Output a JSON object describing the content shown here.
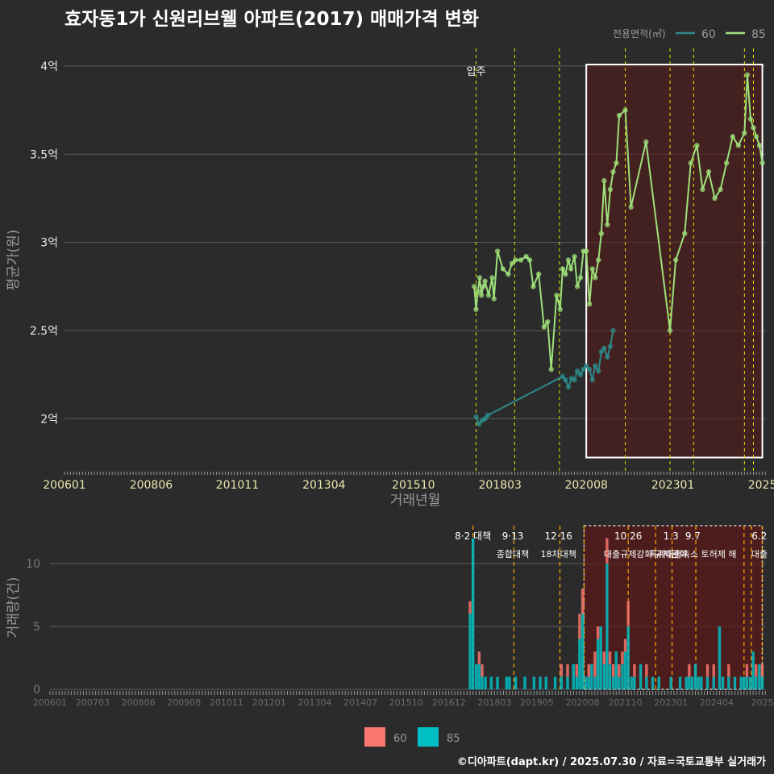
{
  "title": "효자동1가 신원리브웰 아파트(2017) 매매가격 변화",
  "credit": "©디아파트(dapt.kr) / 2025.07.30 / 자료=국토교통부 실거래가",
  "colors": {
    "s60_price": "#2e8a8a",
    "s85_price": "#9ee07a",
    "bar60": "#f8766d",
    "bar85": "#00bfc4",
    "vline": "#e6e600",
    "vline2": "#ffa500",
    "highlight": "#5a1a1a"
  },
  "chart_data": [
    {
      "type": "line",
      "name": "price",
      "xlabel": "거래년월",
      "ylabel": "평균가(원)",
      "ylim": [
        1.7,
        4.1
      ],
      "yticks": [
        {
          "v": 2.0,
          "label": "2억"
        },
        {
          "v": 2.5,
          "label": "2.5억"
        },
        {
          "v": 3.0,
          "label": "3억"
        },
        {
          "v": 3.5,
          "label": "3.5억"
        },
        {
          "v": 4.0,
          "label": "4억"
        }
      ],
      "xlim": [
        2006.0,
        2025.6
      ],
      "xticks": [
        {
          "v": 2006.0,
          "label": "200601"
        },
        {
          "v": 2008.42,
          "label": "200806"
        },
        {
          "v": 2010.83,
          "label": "201011"
        },
        {
          "v": 2013.25,
          "label": "201304"
        },
        {
          "v": 2015.75,
          "label": "201510"
        },
        {
          "v": 2018.17,
          "label": "201803"
        },
        {
          "v": 2020.58,
          "label": "202008"
        },
        {
          "v": 2023.0,
          "label": "202301"
        },
        {
          "v": 2025.5,
          "label": "2025"
        }
      ],
      "legend_title": "전용면적(㎡)",
      "legend": [
        "60",
        "85"
      ],
      "event_lines": [
        {
          "x": 2017.5,
          "label": "입주"
        },
        {
          "x": 2018.58
        },
        {
          "x": 2019.83
        },
        {
          "x": 2021.67
        },
        {
          "x": 2022.92
        },
        {
          "x": 2023.58
        },
        {
          "x": 2025.0
        },
        {
          "x": 2025.25
        }
      ],
      "highlight_range": [
        2020.58,
        2025.5
      ],
      "series": [
        {
          "name": "60",
          "x": [
            2017.5,
            2017.58,
            2017.67,
            2017.75,
            2017.83,
            2019.92,
            2020.0,
            2020.08,
            2020.17,
            2020.25,
            2020.33,
            2020.42,
            2020.5,
            2020.58,
            2020.67,
            2020.75,
            2020.83,
            2020.92,
            2021.0,
            2021.08,
            2021.17,
            2021.25,
            2021.33
          ],
          "y": [
            2.01,
            1.97,
            1.99,
            2.0,
            2.02,
            2.24,
            2.22,
            2.18,
            2.23,
            2.22,
            2.27,
            2.25,
            2.28,
            2.3,
            2.28,
            2.22,
            2.3,
            2.27,
            2.38,
            2.4,
            2.35,
            2.41,
            2.5
          ]
        },
        {
          "name": "85",
          "x": [
            2017.45,
            2017.5,
            2017.55,
            2017.6,
            2017.65,
            2017.7,
            2017.75,
            2017.85,
            2017.95,
            2018.0,
            2018.1,
            2018.25,
            2018.4,
            2018.5,
            2018.6,
            2018.75,
            2018.9,
            2019.0,
            2019.1,
            2019.25,
            2019.4,
            2019.5,
            2019.6,
            2019.75,
            2019.85,
            2019.92,
            2020.0,
            2020.08,
            2020.15,
            2020.25,
            2020.33,
            2020.42,
            2020.5,
            2020.58,
            2020.67,
            2020.75,
            2020.83,
            2020.92,
            2021.0,
            2021.08,
            2021.17,
            2021.25,
            2021.33,
            2021.42,
            2021.5,
            2021.67,
            2021.83,
            2022.25,
            2022.92,
            2023.08,
            2023.33,
            2023.5,
            2023.67,
            2023.83,
            2024.0,
            2024.17,
            2024.33,
            2024.5,
            2024.67,
            2024.83,
            2025.0,
            2025.08,
            2025.17,
            2025.25,
            2025.33,
            2025.42,
            2025.5
          ],
          "y": [
            2.75,
            2.62,
            2.72,
            2.8,
            2.7,
            2.75,
            2.78,
            2.7,
            2.8,
            2.68,
            2.95,
            2.85,
            2.82,
            2.88,
            2.9,
            2.9,
            2.92,
            2.9,
            2.75,
            2.82,
            2.52,
            2.55,
            2.28,
            2.7,
            2.62,
            2.85,
            2.82,
            2.9,
            2.85,
            2.92,
            2.75,
            2.8,
            2.95,
            2.95,
            2.65,
            2.85,
            2.8,
            2.9,
            3.05,
            3.35,
            3.1,
            3.3,
            3.4,
            3.45,
            3.72,
            3.75,
            3.2,
            3.57,
            2.5,
            2.9,
            3.05,
            3.45,
            3.55,
            3.3,
            3.4,
            3.25,
            3.3,
            3.45,
            3.6,
            3.55,
            3.62,
            3.95,
            3.7,
            3.65,
            3.6,
            3.55,
            3.45
          ]
        }
      ]
    },
    {
      "type": "bar",
      "name": "volume",
      "xlabel": "",
      "ylabel": "거래량(건)",
      "ylim": [
        0,
        13
      ],
      "yticks": [
        {
          "v": 0,
          "label": "0"
        },
        {
          "v": 5,
          "label": "5"
        },
        {
          "v": 10,
          "label": "10"
        }
      ],
      "xlim": [
        2006.0,
        2025.6
      ],
      "xticks": [
        {
          "v": 2006.0,
          "label": "200601"
        },
        {
          "v": 2007.17,
          "label": "200703"
        },
        {
          "v": 2008.42,
          "label": "200806"
        },
        {
          "v": 2009.67,
          "label": "200908"
        },
        {
          "v": 2010.83,
          "label": "201011"
        },
        {
          "v": 2012.0,
          "label": "201201"
        },
        {
          "v": 2013.25,
          "label": "201304"
        },
        {
          "v": 2014.5,
          "label": "201407"
        },
        {
          "v": 2015.75,
          "label": "201510"
        },
        {
          "v": 2016.92,
          "label": "201612"
        },
        {
          "v": 2018.17,
          "label": "201803"
        },
        {
          "v": 2019.33,
          "label": "201905"
        },
        {
          "v": 2020.58,
          "label": "202008"
        },
        {
          "v": 2021.75,
          "label": "202110"
        },
        {
          "v": 2023.0,
          "label": "202301"
        },
        {
          "v": 2024.25,
          "label": "202404"
        },
        {
          "v": 2025.5,
          "label": "2025"
        }
      ],
      "legend": [
        "60",
        "85"
      ],
      "annotations": [
        {
          "x": 2017.58,
          "line1": "8·2 대책",
          "line2": ""
        },
        {
          "x": 2018.67,
          "line1": "9·13",
          "line2": "종합대책"
        },
        {
          "x": 2019.92,
          "line1": "12·16",
          "line2": "18차대책"
        },
        {
          "x": 2021.83,
          "line1": "10.26",
          "line2": "대출규제강화"
        },
        {
          "x": 2023.0,
          "line1": "1.3",
          "line2": "규제완화"
        },
        {
          "x": 2023.6,
          "line1": "9.7",
          "line2": "특례대출축소 토허제 해"
        },
        {
          "x": 2025.42,
          "line1": "6.2",
          "line2": "대출"
        }
      ],
      "event_lines": [
        2017.58,
        2018.7,
        2019.96,
        2020.62,
        2021.83,
        2022.58,
        2023.03,
        2023.68,
        2025.0,
        2025.2,
        2025.5
      ],
      "highlight_range": [
        2020.62,
        2025.5
      ],
      "bars": [
        {
          "x": 2017.5,
          "s60": 1,
          "s85": 6
        },
        {
          "x": 2017.58,
          "s60": 0,
          "s85": 12
        },
        {
          "x": 2017.67,
          "s60": 0,
          "s85": 2
        },
        {
          "x": 2017.75,
          "s60": 1,
          "s85": 2
        },
        {
          "x": 2017.83,
          "s60": 1,
          "s85": 1
        },
        {
          "x": 2017.92,
          "s60": 0,
          "s85": 1
        },
        {
          "x": 2018.08,
          "s60": 0,
          "s85": 1
        },
        {
          "x": 2018.25,
          "s60": 0,
          "s85": 1
        },
        {
          "x": 2018.5,
          "s60": 0,
          "s85": 1
        },
        {
          "x": 2018.58,
          "s60": 0,
          "s85": 1
        },
        {
          "x": 2018.75,
          "s60": 0,
          "s85": 1
        },
        {
          "x": 2019.0,
          "s60": 0,
          "s85": 1
        },
        {
          "x": 2019.25,
          "s60": 0,
          "s85": 1
        },
        {
          "x": 2019.42,
          "s60": 0,
          "s85": 1
        },
        {
          "x": 2019.58,
          "s60": 0,
          "s85": 1
        },
        {
          "x": 2019.83,
          "s60": 0,
          "s85": 1
        },
        {
          "x": 2020.0,
          "s60": 1,
          "s85": 1
        },
        {
          "x": 2020.17,
          "s60": 1,
          "s85": 1
        },
        {
          "x": 2020.33,
          "s60": 0,
          "s85": 2
        },
        {
          "x": 2020.42,
          "s60": 1,
          "s85": 1
        },
        {
          "x": 2020.5,
          "s60": 2,
          "s85": 4
        },
        {
          "x": 2020.58,
          "s60": 2,
          "s85": 6
        },
        {
          "x": 2020.67,
          "s60": 0,
          "s85": 1
        },
        {
          "x": 2020.75,
          "s60": 1,
          "s85": 1
        },
        {
          "x": 2020.83,
          "s60": 0,
          "s85": 2
        },
        {
          "x": 2020.92,
          "s60": 2,
          "s85": 1
        },
        {
          "x": 2021.0,
          "s60": 1,
          "s85": 4
        },
        {
          "x": 2021.08,
          "s60": 0,
          "s85": 5
        },
        {
          "x": 2021.17,
          "s60": 1,
          "s85": 2
        },
        {
          "x": 2021.25,
          "s60": 2,
          "s85": 10
        },
        {
          "x": 2021.33,
          "s60": 1,
          "s85": 2
        },
        {
          "x": 2021.42,
          "s60": 1,
          "s85": 1
        },
        {
          "x": 2021.5,
          "s60": 0,
          "s85": 3
        },
        {
          "x": 2021.58,
          "s60": 1,
          "s85": 1
        },
        {
          "x": 2021.67,
          "s60": 1,
          "s85": 2
        },
        {
          "x": 2021.75,
          "s60": 1,
          "s85": 3
        },
        {
          "x": 2021.83,
          "s60": 2,
          "s85": 5
        },
        {
          "x": 2021.92,
          "s60": 0,
          "s85": 1
        },
        {
          "x": 2022.0,
          "s60": 1,
          "s85": 1
        },
        {
          "x": 2022.17,
          "s60": 0,
          "s85": 2
        },
        {
          "x": 2022.33,
          "s60": 1,
          "s85": 1
        },
        {
          "x": 2022.5,
          "s60": 0,
          "s85": 1
        },
        {
          "x": 2022.67,
          "s60": 0,
          "s85": 1
        },
        {
          "x": 2023.0,
          "s60": 0,
          "s85": 1
        },
        {
          "x": 2023.25,
          "s60": 0,
          "s85": 1
        },
        {
          "x": 2023.42,
          "s60": 0,
          "s85": 1
        },
        {
          "x": 2023.5,
          "s60": 1,
          "s85": 1
        },
        {
          "x": 2023.58,
          "s60": 0,
          "s85": 1
        },
        {
          "x": 2023.67,
          "s60": 0,
          "s85": 2
        },
        {
          "x": 2023.75,
          "s60": 0,
          "s85": 1
        },
        {
          "x": 2023.83,
          "s60": 0,
          "s85": 1
        },
        {
          "x": 2024.0,
          "s60": 1,
          "s85": 1
        },
        {
          "x": 2024.17,
          "s60": 1,
          "s85": 1
        },
        {
          "x": 2024.33,
          "s60": 0,
          "s85": 5
        },
        {
          "x": 2024.42,
          "s60": 0,
          "s85": 1
        },
        {
          "x": 2024.58,
          "s60": 1,
          "s85": 1
        },
        {
          "x": 2024.75,
          "s60": 0,
          "s85": 1
        },
        {
          "x": 2024.92,
          "s60": 0,
          "s85": 1
        },
        {
          "x": 2025.0,
          "s60": 0,
          "s85": 1
        },
        {
          "x": 2025.08,
          "s60": 1,
          "s85": 1
        },
        {
          "x": 2025.17,
          "s60": 0,
          "s85": 1
        },
        {
          "x": 2025.25,
          "s60": 0,
          "s85": 3
        },
        {
          "x": 2025.33,
          "s60": 1,
          "s85": 1
        },
        {
          "x": 2025.42,
          "s60": 0,
          "s85": 2
        },
        {
          "x": 2025.5,
          "s60": 1,
          "s85": 1
        }
      ]
    }
  ]
}
